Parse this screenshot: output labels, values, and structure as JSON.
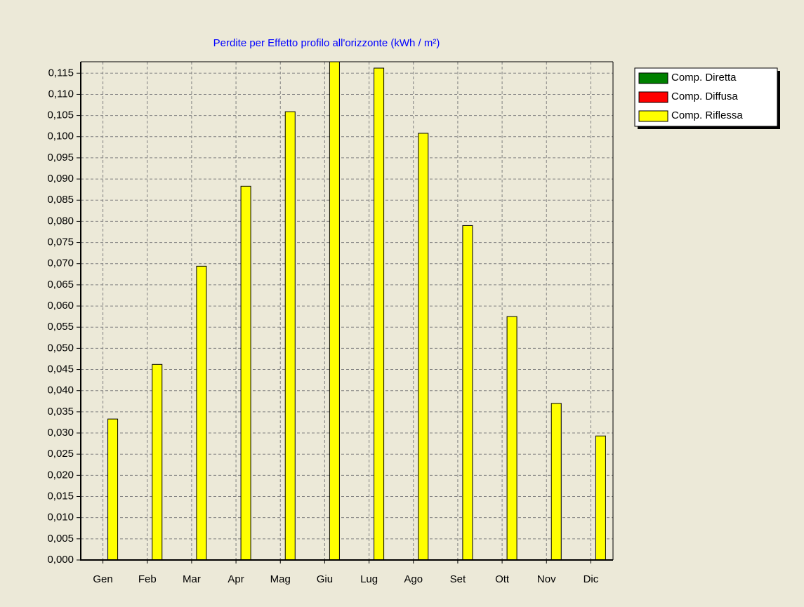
{
  "chart_data": {
    "type": "bar",
    "title": "Perdite per Effetto profilo all'orizzonte (kWh / m²)",
    "categories": [
      "Gen",
      "Feb",
      "Mar",
      "Apr",
      "Mag",
      "Giu",
      "Lug",
      "Ago",
      "Set",
      "Ott",
      "Nov",
      "Dic"
    ],
    "series": [
      {
        "name": "Comp. Diretta",
        "color": "#008000",
        "values": [
          0,
          0,
          0,
          0,
          0,
          0,
          0,
          0,
          0,
          0,
          0,
          0
        ]
      },
      {
        "name": "Comp. Diffusa",
        "color": "#ff0000",
        "values": [
          0,
          0,
          0,
          0,
          0,
          0,
          0,
          0,
          0,
          0,
          0,
          0
        ]
      },
      {
        "name": "Comp. Riflessa",
        "color": "#ffff00",
        "values": [
          0.0333,
          0.0462,
          0.0694,
          0.0883,
          0.1059,
          0.1177,
          0.1162,
          0.1008,
          0.079,
          0.0575,
          0.037,
          0.0293
        ]
      }
    ],
    "ylim": [
      0,
      0.1177
    ],
    "yticks": [
      {
        "value": 0,
        "label": "0,000"
      },
      {
        "value": 0.005,
        "label": "0,005"
      },
      {
        "value": 0.01,
        "label": "0,010"
      },
      {
        "value": 0.015,
        "label": "0,015"
      },
      {
        "value": 0.02,
        "label": "0,020"
      },
      {
        "value": 0.025,
        "label": "0,025"
      },
      {
        "value": 0.03,
        "label": "0,030"
      },
      {
        "value": 0.035,
        "label": "0,035"
      },
      {
        "value": 0.04,
        "label": "0,040"
      },
      {
        "value": 0.045,
        "label": "0,045"
      },
      {
        "value": 0.05,
        "label": "0,050"
      },
      {
        "value": 0.055,
        "label": "0,055"
      },
      {
        "value": 0.06,
        "label": "0,060"
      },
      {
        "value": 0.065,
        "label": "0,065"
      },
      {
        "value": 0.07,
        "label": "0,070"
      },
      {
        "value": 0.075,
        "label": "0,075"
      },
      {
        "value": 0.08,
        "label": "0,080"
      },
      {
        "value": 0.085,
        "label": "0,085"
      },
      {
        "value": 0.09,
        "label": "0,090"
      },
      {
        "value": 0.095,
        "label": "0,095"
      },
      {
        "value": 0.1,
        "label": "0,100"
      },
      {
        "value": 0.105,
        "label": "0,105"
      },
      {
        "value": 0.11,
        "label": "0,110"
      },
      {
        "value": 0.115,
        "label": "0,115"
      }
    ],
    "grid": true,
    "legend": "right"
  }
}
